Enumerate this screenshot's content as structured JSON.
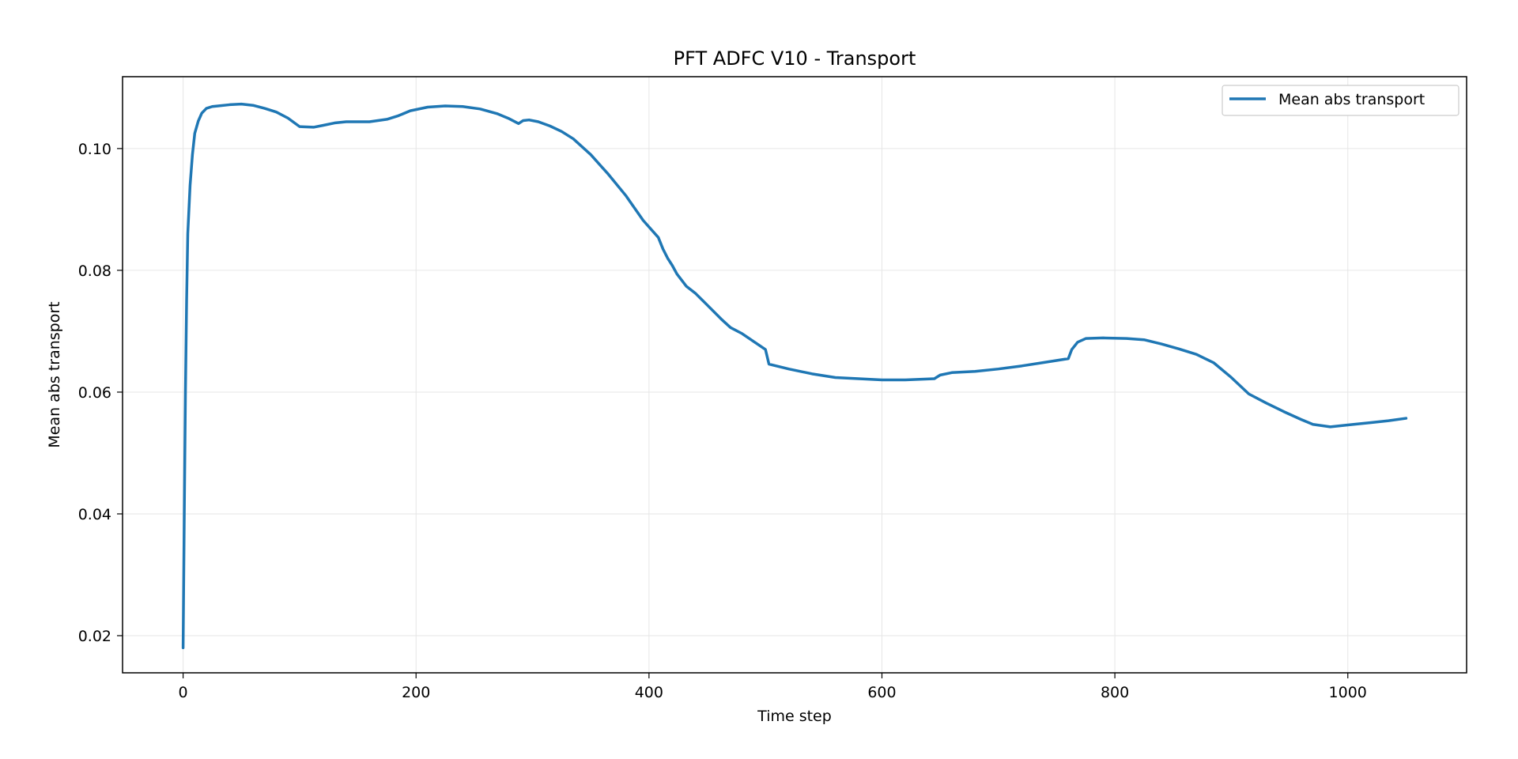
{
  "chart_data": {
    "type": "line",
    "title": "PFT ADFC V10 - Transport",
    "xlabel": "Time step",
    "ylabel": "Mean abs transport",
    "xlim": [
      -52,
      1102
    ],
    "ylim": [
      0.0139,
      0.1118
    ],
    "xticks": [
      0,
      200,
      400,
      600,
      800,
      1000
    ],
    "xtick_labels": [
      "0",
      "200",
      "400",
      "600",
      "800",
      "1000"
    ],
    "yticks": [
      0.02,
      0.04,
      0.06,
      0.08,
      0.1
    ],
    "ytick_labels": [
      "0.02",
      "0.04",
      "0.06",
      "0.08",
      "0.10"
    ],
    "grid": true,
    "legend_position": "top-right",
    "series": [
      {
        "name": "Mean abs transport",
        "color": "#1f77b4",
        "points": [
          [
            0,
            0.018
          ],
          [
            1,
            0.04
          ],
          [
            2,
            0.06
          ],
          [
            3,
            0.075
          ],
          [
            4,
            0.086
          ],
          [
            6,
            0.094
          ],
          [
            8,
            0.099
          ],
          [
            10,
            0.1025
          ],
          [
            13,
            0.1045
          ],
          [
            16,
            0.1058
          ],
          [
            20,
            0.1066
          ],
          [
            25,
            0.1069
          ],
          [
            30,
            0.107
          ],
          [
            40,
            0.1072
          ],
          [
            50,
            0.1073
          ],
          [
            60,
            0.1071
          ],
          [
            70,
            0.1066
          ],
          [
            80,
            0.106
          ],
          [
            90,
            0.105
          ],
          [
            100,
            0.1036
          ],
          [
            112,
            0.1035
          ],
          [
            120,
            0.1038
          ],
          [
            130,
            0.1042
          ],
          [
            140,
            0.1044
          ],
          [
            150,
            0.1044
          ],
          [
            160,
            0.1044
          ],
          [
            175,
            0.1048
          ],
          [
            185,
            0.1054
          ],
          [
            195,
            0.1062
          ],
          [
            210,
            0.1068
          ],
          [
            225,
            0.107
          ],
          [
            240,
            0.1069
          ],
          [
            255,
            0.1065
          ],
          [
            270,
            0.1057
          ],
          [
            280,
            0.1049
          ],
          [
            288,
            0.1041
          ],
          [
            292,
            0.1046
          ],
          [
            297,
            0.1047
          ],
          [
            305,
            0.1044
          ],
          [
            315,
            0.1037
          ],
          [
            325,
            0.1028
          ],
          [
            335,
            0.1016
          ],
          [
            350,
            0.099
          ],
          [
            365,
            0.0958
          ],
          [
            380,
            0.0923
          ],
          [
            395,
            0.0882
          ],
          [
            408,
            0.0854
          ],
          [
            412,
            0.0835
          ],
          [
            416,
            0.082
          ],
          [
            420,
            0.0808
          ],
          [
            424,
            0.0794
          ],
          [
            432,
            0.0774
          ],
          [
            440,
            0.0762
          ],
          [
            450,
            0.0743
          ],
          [
            462,
            0.072
          ],
          [
            470,
            0.0706
          ],
          [
            480,
            0.0696
          ],
          [
            500,
            0.067
          ],
          [
            503,
            0.0646
          ],
          [
            520,
            0.0638
          ],
          [
            540,
            0.063
          ],
          [
            560,
            0.0624
          ],
          [
            580,
            0.0622
          ],
          [
            600,
            0.062
          ],
          [
            620,
            0.062
          ],
          [
            645,
            0.0622
          ],
          [
            650,
            0.0628
          ],
          [
            660,
            0.0632
          ],
          [
            680,
            0.0634
          ],
          [
            700,
            0.0638
          ],
          [
            720,
            0.0643
          ],
          [
            740,
            0.0649
          ],
          [
            760,
            0.0655
          ],
          [
            763,
            0.067
          ],
          [
            768,
            0.0682
          ],
          [
            775,
            0.0688
          ],
          [
            790,
            0.0689
          ],
          [
            810,
            0.0688
          ],
          [
            825,
            0.0686
          ],
          [
            840,
            0.0679
          ],
          [
            855,
            0.0671
          ],
          [
            870,
            0.0662
          ],
          [
            885,
            0.0648
          ],
          [
            900,
            0.0624
          ],
          [
            915,
            0.0597
          ],
          [
            930,
            0.0582
          ],
          [
            945,
            0.0568
          ],
          [
            960,
            0.0555
          ],
          [
            970,
            0.0547
          ],
          [
            985,
            0.0543
          ],
          [
            1000,
            0.0546
          ],
          [
            1020,
            0.055
          ],
          [
            1035,
            0.0553
          ],
          [
            1050,
            0.0557
          ]
        ]
      }
    ]
  }
}
